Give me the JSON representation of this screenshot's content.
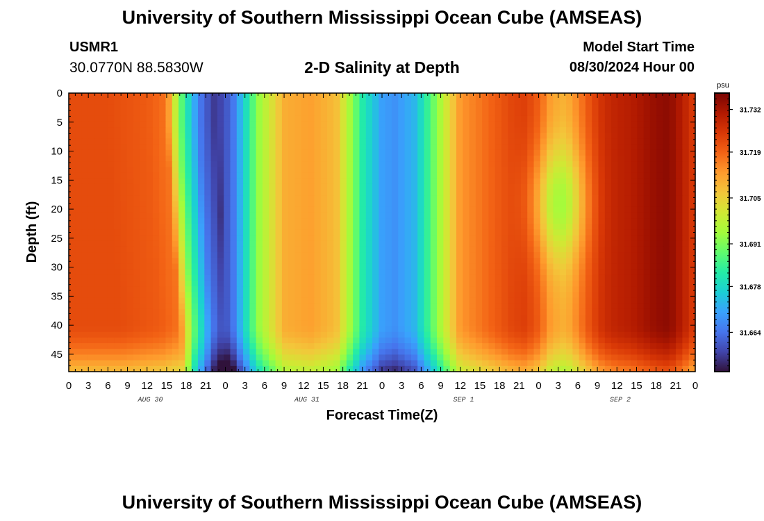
{
  "header": {
    "title": "University of Southern Mississippi Ocean Cube (AMSEAS)",
    "station_id": "USMR1",
    "station_coords": "30.0770N  88.5830W",
    "subtitle": "2-D Salinity at Depth",
    "start_label": "Model Start Time",
    "start_value": "08/30/2024 Hour 00"
  },
  "footer": {
    "title": "University of Southern Mississippi Ocean Cube (AMSEAS)"
  },
  "colors": {
    "background": "#ffffff",
    "colormap": [
      "#30123b",
      "#4145ab",
      "#4675ed",
      "#39a2fc",
      "#1bcfd4",
      "#24eca6",
      "#61fc6c",
      "#a4fc3b",
      "#d1e834",
      "#f3c63a",
      "#fe9b2d",
      "#f36315",
      "#d93806",
      "#b11901",
      "#7a0402"
    ]
  },
  "chart_data": {
    "type": "heatmap",
    "title": "2-D Salinity at Depth",
    "xlabel": "Forecast Time(Z)",
    "ylabel": "Depth (ft)",
    "x_range_hours": [
      0,
      96
    ],
    "x_tick_labels": [
      "0",
      "3",
      "6",
      "9",
      "12",
      "15",
      "18",
      "21",
      "0",
      "3",
      "6",
      "9",
      "12",
      "15",
      "18",
      "21",
      "0",
      "3",
      "6",
      "9",
      "12",
      "15",
      "18",
      "21",
      "0",
      "3",
      "6",
      "9",
      "12",
      "15",
      "18",
      "21",
      "0"
    ],
    "day_labels": [
      "AUG 30",
      "AUG 31",
      "SEP 1",
      "SEP 2"
    ],
    "y_range": [
      0,
      48
    ],
    "y_ticks": [
      0,
      5,
      10,
      15,
      20,
      25,
      30,
      35,
      40,
      45
    ],
    "y_tick_labels": [
      "0",
      "5",
      "10",
      "15",
      "20",
      "25",
      "30",
      "35",
      "40",
      "45"
    ],
    "colorbar": {
      "unit": "psu",
      "range": [
        31.652,
        31.737
      ],
      "ticks": [
        31.664,
        31.678,
        31.691,
        31.705,
        31.719,
        31.732
      ],
      "tick_labels": [
        "31.664",
        "31.678",
        "31.691",
        "31.705",
        "31.719",
        "31.732"
      ]
    },
    "surface_salinity_profile": {
      "hours": [
        0,
        6,
        12,
        15,
        17,
        20,
        22.5,
        25,
        29,
        33,
        37,
        41,
        45,
        48,
        50,
        53,
        56,
        60,
        64,
        68,
        70,
        72,
        74,
        76,
        77,
        80,
        82,
        84,
        86,
        88,
        90,
        92,
        94,
        96
      ],
      "values": [
        31.722,
        31.722,
        31.72,
        31.717,
        31.69,
        31.665,
        31.656,
        31.663,
        31.693,
        31.71,
        31.712,
        31.708,
        31.682,
        31.67,
        31.668,
        31.673,
        31.69,
        31.713,
        31.718,
        31.723,
        31.724,
        31.72,
        31.712,
        31.71,
        31.712,
        31.722,
        31.727,
        31.729,
        31.73,
        31.732,
        31.734,
        31.735,
        31.73,
        31.724
      ]
    }
  }
}
